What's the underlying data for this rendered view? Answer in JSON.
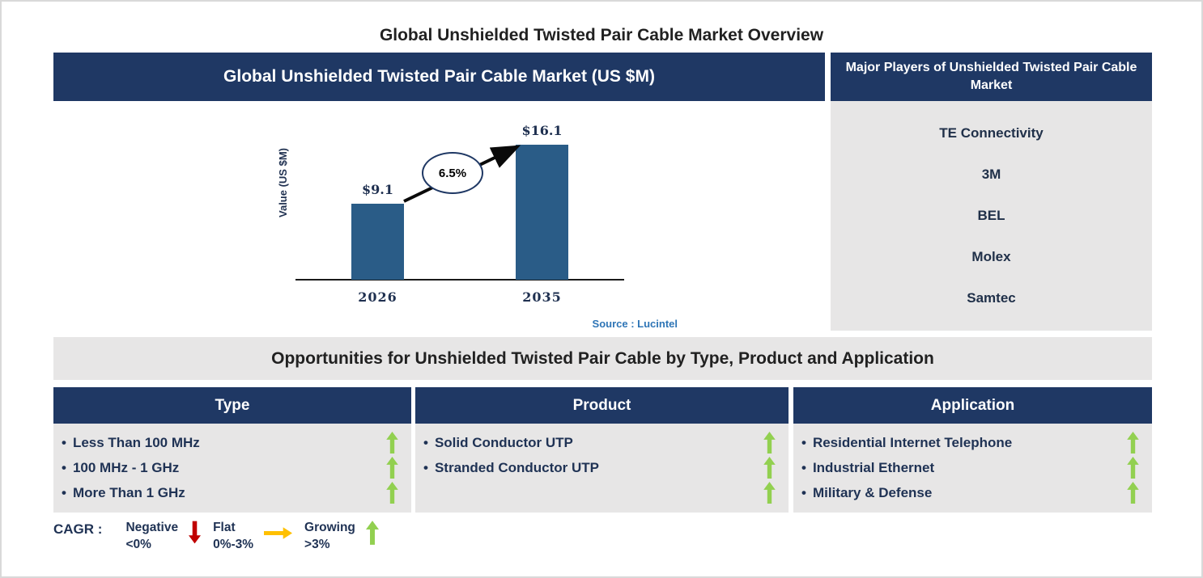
{
  "page_title": "Global Unshielded Twisted Pair Cable Market Overview",
  "chart_data": {
    "type": "bar",
    "title": "Global Unshielded Twisted Pair Cable Market (US $M)",
    "categories": [
      "2026",
      "2035"
    ],
    "values": [
      9.1,
      16.1
    ],
    "value_labels": [
      "$9.1",
      "$16.1"
    ],
    "xlabel": "",
    "ylabel": "Value (US $M)",
    "ylim": [
      0,
      17
    ],
    "grid": false,
    "cagr_label": "6.5%",
    "bar_color": "#2A5C87",
    "source": "Source : Lucintel"
  },
  "major_players": {
    "header": "Major Players of Unshielded Twisted Pair Cable Market",
    "items": [
      "TE Connectivity",
      "3M",
      "BEL",
      "Molex",
      "Samtec"
    ]
  },
  "opportunities": {
    "header": "Opportunities for Unshielded Twisted Pair Cable by Type, Product and Application",
    "columns": [
      {
        "title": "Type",
        "items": [
          {
            "label": "Less Than 100 MHz",
            "trend": "growing"
          },
          {
            "label": "100 MHz - 1 GHz",
            "trend": "growing"
          },
          {
            "label": "More Than 1 GHz",
            "trend": "growing"
          }
        ]
      },
      {
        "title": "Product",
        "items": [
          {
            "label": "Solid Conductor UTP",
            "trend": "growing"
          },
          {
            "label": "Stranded Conductor UTP",
            "trend": "growing"
          },
          {
            "label": "",
            "trend": "growing"
          }
        ]
      },
      {
        "title": "Application",
        "items": [
          {
            "label": "Residential Internet Telephone",
            "trend": "growing"
          },
          {
            "label": "Industrial Ethernet",
            "trend": "growing"
          },
          {
            "label": "Military & Defense",
            "trend": "growing"
          }
        ]
      }
    ]
  },
  "cagr_legend": {
    "label": "CAGR :",
    "entries": [
      {
        "name": "Negative",
        "range": "<0%",
        "direction": "down",
        "color": "#C00000"
      },
      {
        "name": "Flat",
        "range": "0%-3%",
        "direction": "right",
        "color": "#FFC000"
      },
      {
        "name": "Growing",
        "range": ">3%",
        "direction": "up",
        "color": "#92D050"
      }
    ]
  },
  "colors": {
    "navy_header": "#1F3864",
    "bar_blue": "#2A5C87",
    "panel_gray": "#E7E6E6",
    "growing_green": "#92D050",
    "negative_red": "#C00000",
    "flat_yellow": "#FFC000",
    "source_blue": "#2E75B6"
  }
}
